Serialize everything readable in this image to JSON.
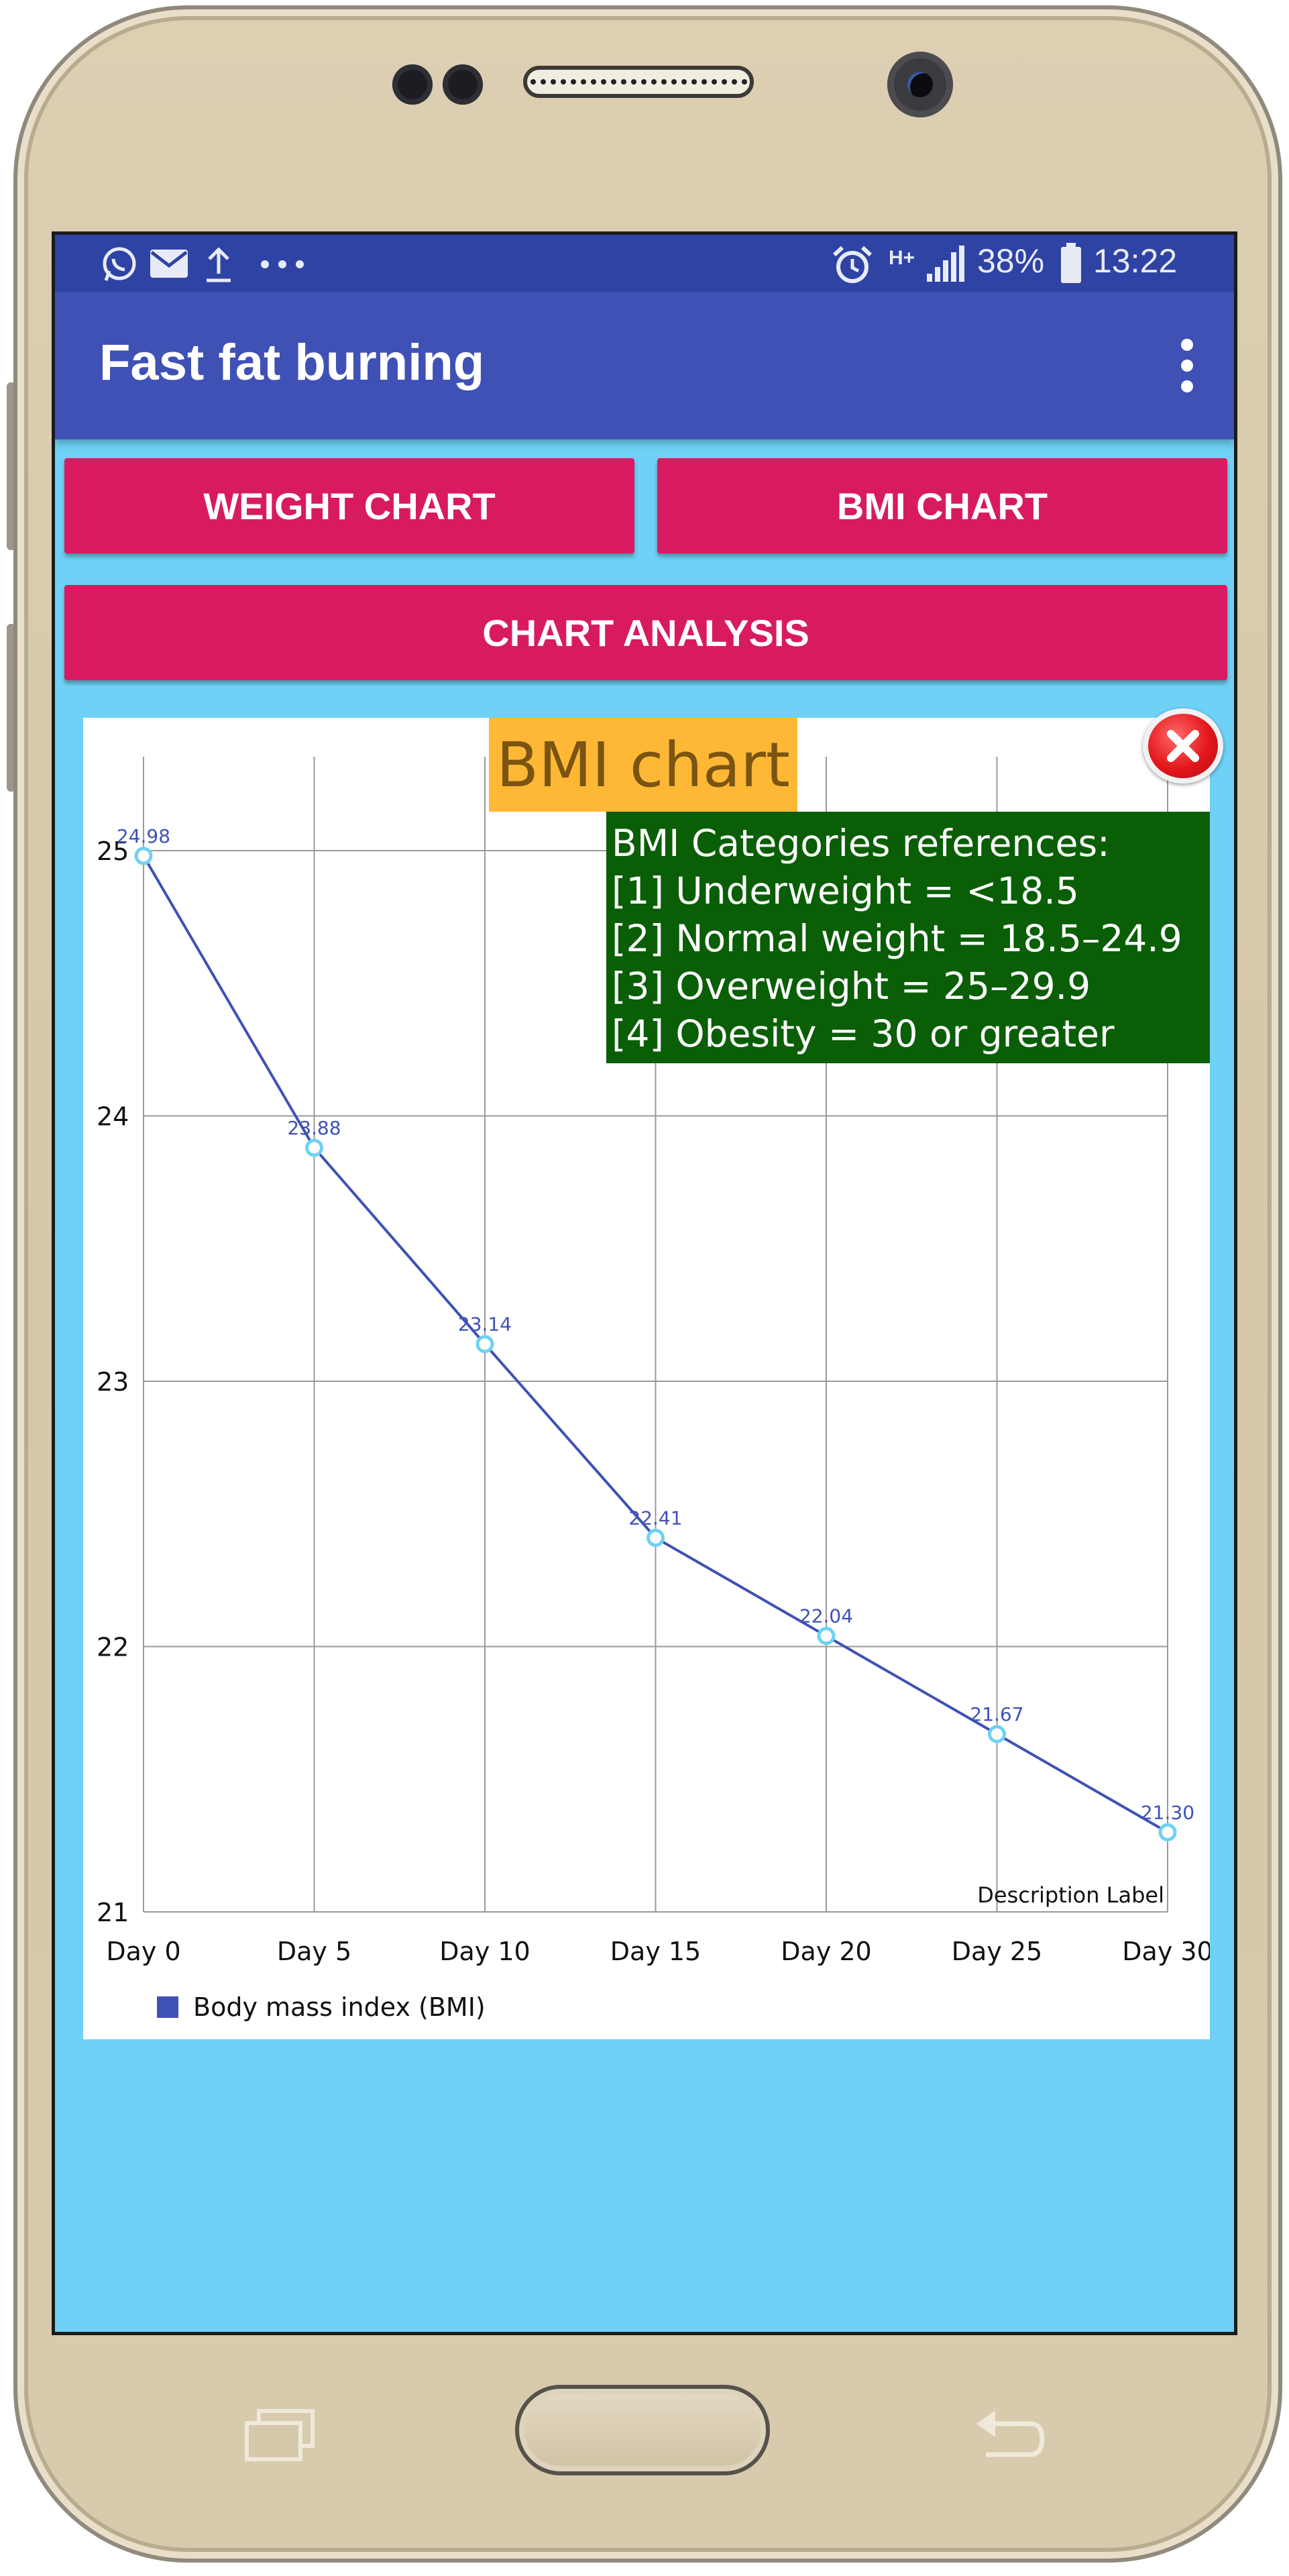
{
  "status_bar": {
    "battery": "38%",
    "time": "13:22",
    "network": "H+",
    "icons_left": [
      "whatsapp-icon",
      "mail-icon",
      "upload-icon",
      "more-dots-icon"
    ],
    "icons_right": [
      "alarm-icon",
      "signal-icon",
      "battery-icon"
    ]
  },
  "app_bar": {
    "title": "Fast fat burning",
    "menu_icon": "overflow-menu-icon"
  },
  "buttons": {
    "weight_chart": "WEIGHT CHART",
    "bmi_chart": "BMI CHART",
    "chart_analysis": "CHART ANALYSIS"
  },
  "chart_panel": {
    "title": "BMI chart",
    "close_icon": "close-icon",
    "references": [
      "BMI Categories references:",
      "[1] Underweight = <18.5",
      "[2] Normal weight = 18.5–24.9",
      "[3] Overweight = 25–29.9",
      "[4] Obesity = 30 or greater"
    ],
    "description_label": "Description Label"
  },
  "chart_data": {
    "type": "line",
    "title": "BMI chart",
    "categories": [
      "Day 0",
      "Day 5",
      "Day 10",
      "Day 15",
      "Day 20",
      "Day 25",
      "Day 30"
    ],
    "series": [
      {
        "name": "Body mass index (BMI)",
        "values": [
          24.98,
          23.88,
          23.14,
          22.41,
          22.04,
          21.67,
          21.3
        ],
        "labels": [
          "24.98",
          "23.88",
          "23.14",
          "22.41",
          "22.04",
          "21.67",
          "21.30"
        ],
        "color": "#3f51b5"
      }
    ],
    "yticks": [
      "21",
      "22",
      "23",
      "24",
      "25"
    ],
    "ylim": [
      21,
      25.35
    ],
    "grid": true,
    "legend": "bottom-left",
    "colors": {
      "line": "#3f51b5",
      "marker": "#6fd1f5",
      "value_label": "#3f51b5"
    }
  },
  "nav_bar": {
    "recents_icon": "recents-icon",
    "back_icon": "back-icon"
  }
}
